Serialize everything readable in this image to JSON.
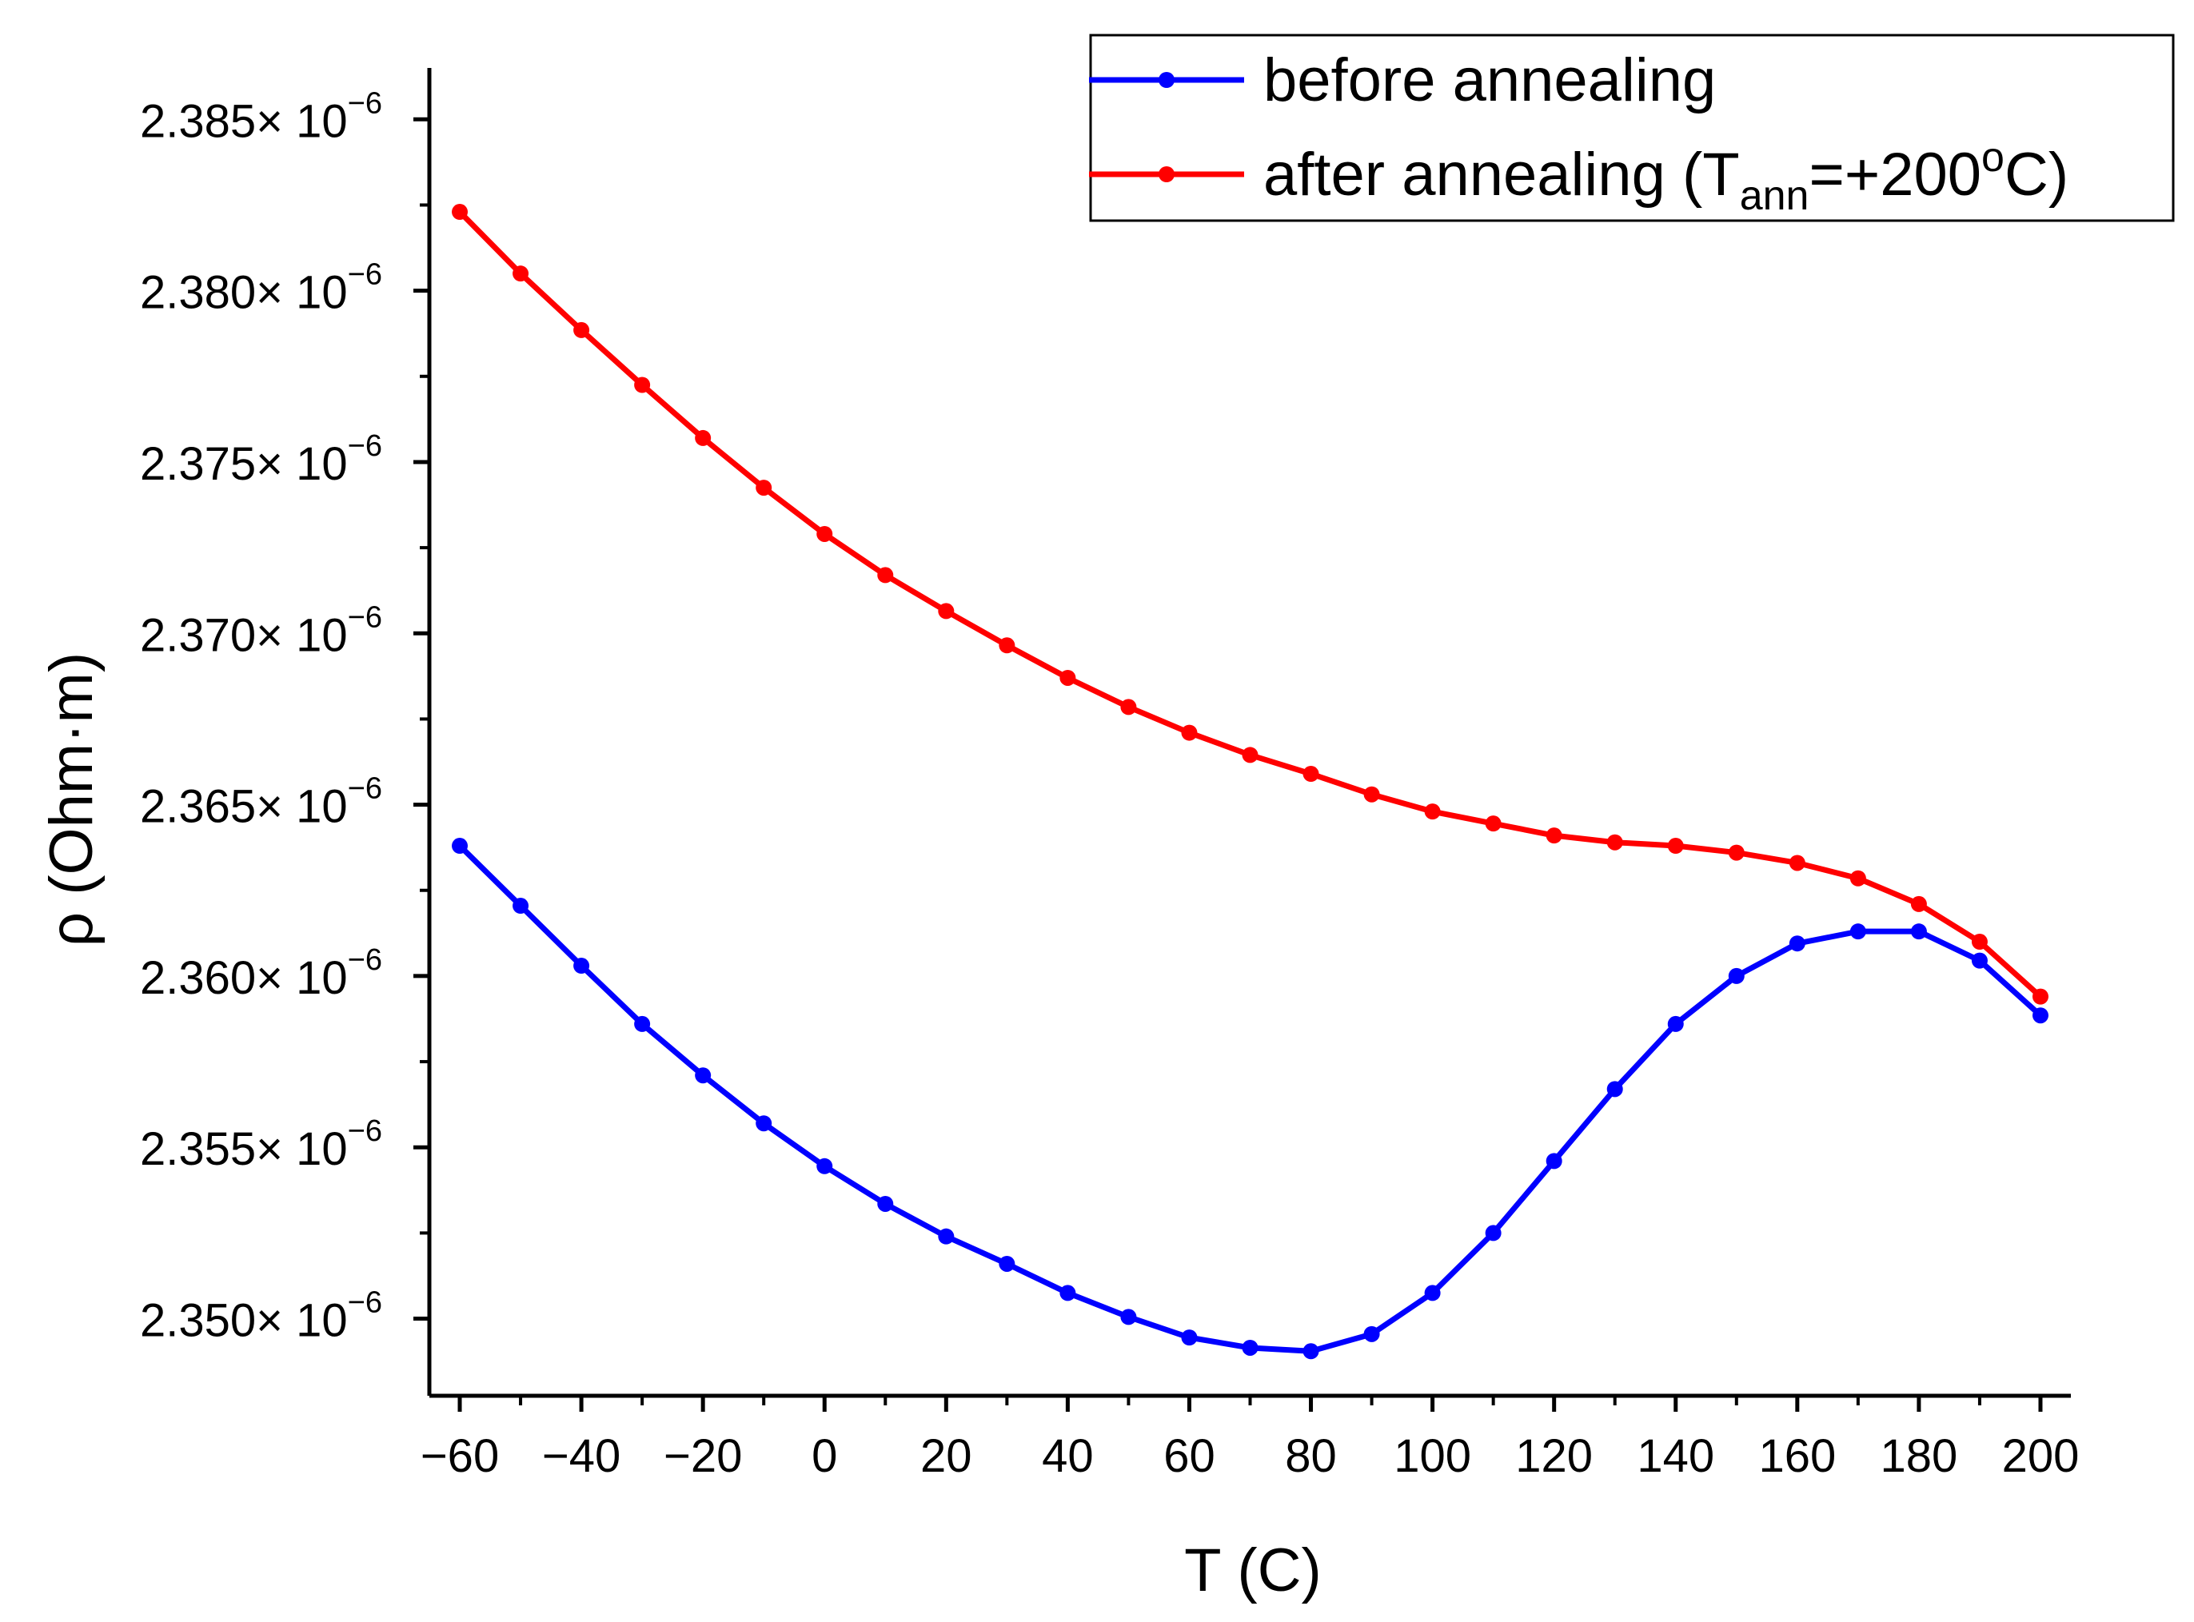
{
  "chart_data": {
    "type": "line",
    "title": "",
    "xlabel": "T (C)",
    "ylabel": "ρ (Ohm·m)",
    "xlim": [
      -65,
      205
    ],
    "ylim": [
      2.34775,
      2.3865
    ],
    "y_scale_text": "× 10",
    "y_scale_exponent": "−6",
    "x_ticks": [
      {
        "value": -60,
        "label": "−60"
      },
      {
        "value": -40,
        "label": "−40"
      },
      {
        "value": -20,
        "label": "−20"
      },
      {
        "value": 0,
        "label": "0"
      },
      {
        "value": 20,
        "label": "20"
      },
      {
        "value": 40,
        "label": "40"
      },
      {
        "value": 60,
        "label": "60"
      },
      {
        "value": 80,
        "label": "80"
      },
      {
        "value": 100,
        "label": "100"
      },
      {
        "value": 120,
        "label": "120"
      },
      {
        "value": 140,
        "label": "140"
      },
      {
        "value": 160,
        "label": "160"
      },
      {
        "value": 180,
        "label": "180"
      },
      {
        "value": 200,
        "label": "200"
      }
    ],
    "y_ticks": [
      {
        "value": 2.35,
        "label": "2.350"
      },
      {
        "value": 2.355,
        "label": "2.355"
      },
      {
        "value": 2.36,
        "label": "2.360"
      },
      {
        "value": 2.365,
        "label": "2.365"
      },
      {
        "value": 2.37,
        "label": "2.370"
      },
      {
        "value": 2.375,
        "label": "2.375"
      },
      {
        "value": 2.38,
        "label": "2.380"
      },
      {
        "value": 2.385,
        "label": "2.385"
      }
    ],
    "legend_position": "top-right",
    "x": [
      -60,
      -50,
      -40,
      -30,
      -20,
      -10,
      0,
      10,
      20,
      30,
      40,
      50,
      60,
      70,
      80,
      90,
      100,
      110,
      120,
      130,
      140,
      150,
      160,
      170,
      180,
      190,
      200
    ],
    "series": [
      {
        "name": "before annealing",
        "legend_main": "before annealing",
        "legend_sub": "",
        "legend_tail": "",
        "legend_sup": "",
        "legend_end": "",
        "color": "#0000ff",
        "values": [
          2.3638,
          2.36205,
          2.3603,
          2.3586,
          2.3571,
          2.3557,
          2.35445,
          2.35335,
          2.3524,
          2.3516,
          2.35075,
          2.35005,
          2.34945,
          2.34915,
          2.34905,
          2.34955,
          2.35075,
          2.3525,
          2.3546,
          2.3567,
          2.3586,
          2.36,
          2.36095,
          2.3613,
          2.3613,
          2.36045,
          2.35885
        ]
      },
      {
        "name": "after annealing (Tann=+200oC)",
        "legend_main": "after annealing (T",
        "legend_sub": "ann",
        "legend_tail": "=+200",
        "legend_sup": "o",
        "legend_end": "C)",
        "color": "#ff0000",
        "values": [
          2.3823,
          2.3805,
          2.37885,
          2.37725,
          2.3757,
          2.37425,
          2.3729,
          2.3717,
          2.37065,
          2.36965,
          2.3687,
          2.36785,
          2.3671,
          2.36645,
          2.3659,
          2.3653,
          2.3648,
          2.36445,
          2.3641,
          2.3639,
          2.3638,
          2.3636,
          2.3633,
          2.36285,
          2.3621,
          2.361,
          2.3594
        ]
      }
    ]
  }
}
